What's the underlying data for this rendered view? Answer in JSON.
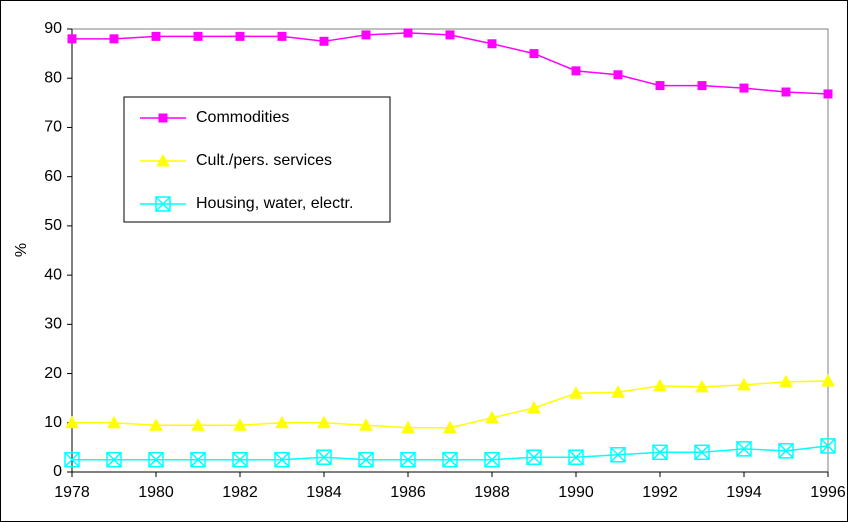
{
  "chart_data": {
    "type": "line",
    "y_label": "%",
    "x": [
      1978,
      1979,
      1980,
      1981,
      1982,
      1983,
      1984,
      1985,
      1986,
      1987,
      1988,
      1989,
      1990,
      1991,
      1992,
      1993,
      1994,
      1995,
      1996
    ],
    "xlim": [
      1978,
      1996
    ],
    "xticks": [
      1978,
      1980,
      1982,
      1984,
      1986,
      1988,
      1990,
      1992,
      1994,
      1996
    ],
    "ylim": [
      0,
      90
    ],
    "yticks": [
      0,
      10,
      20,
      30,
      40,
      50,
      60,
      70,
      80,
      90
    ],
    "legend": "upper left",
    "series": [
      {
        "name": "Commodities",
        "color": "#ff00ff",
        "marker": "square",
        "values": [
          88,
          88,
          88.5,
          88.5,
          88.5,
          88.5,
          87.5,
          88.8,
          89.2,
          88.8,
          87,
          85,
          81.5,
          80.7,
          78.5,
          78.5,
          78,
          77.2,
          76.8
        ]
      },
      {
        "name": "Cult./pers. services",
        "color": "#ffff00",
        "marker": "triangle",
        "values": [
          10,
          10,
          9.5,
          9.5,
          9.5,
          10,
          10,
          9.5,
          9,
          9,
          11,
          13,
          16,
          16.2,
          17.5,
          17.3,
          17.7,
          18.3,
          18.5
        ]
      },
      {
        "name": "Housing, water, electr.",
        "color": "#00ffff",
        "marker": "boxx",
        "values": [
          2.5,
          2.5,
          2.5,
          2.5,
          2.5,
          2.5,
          3,
          2.5,
          2.5,
          2.5,
          2.5,
          3,
          3,
          3.5,
          4,
          4,
          4.7,
          4.3,
          5.3
        ]
      }
    ]
  }
}
